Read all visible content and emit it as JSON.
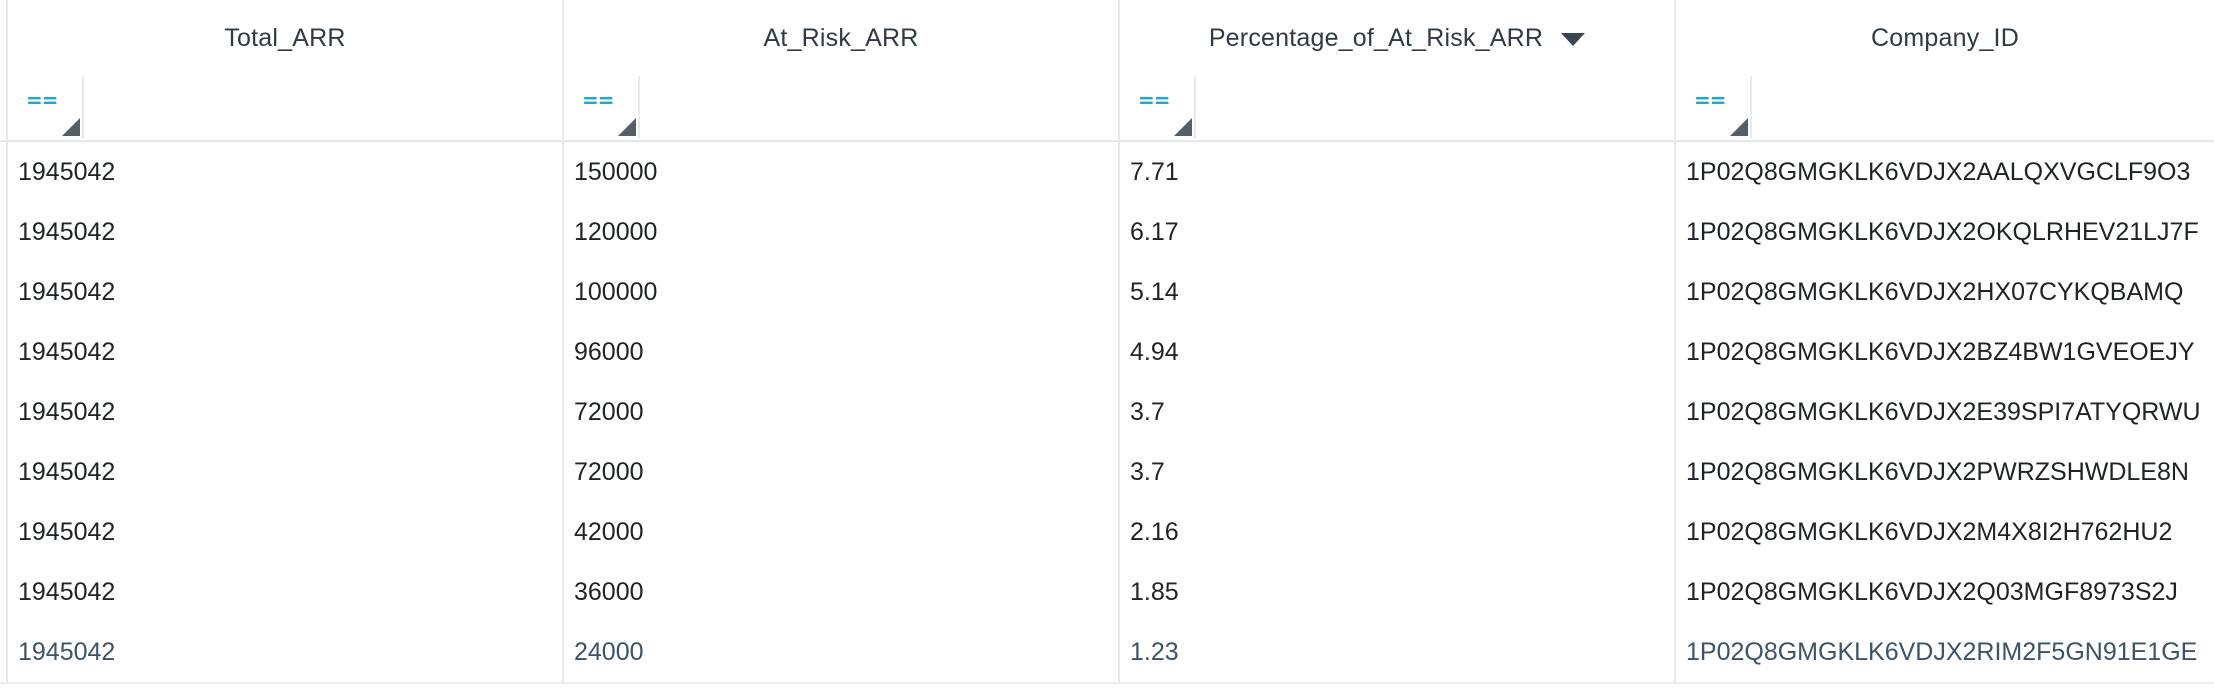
{
  "table": {
    "columns": [
      {
        "label": "Total_ARR"
      },
      {
        "label": "At_Risk_ARR"
      },
      {
        "label": "Percentage_of_At_Risk_ARR",
        "sorted": "descending"
      },
      {
        "label": "Company_ID"
      }
    ],
    "filter_label": "==",
    "rows": [
      [
        "1945042",
        "150000",
        "7.71",
        "1P02Q8GMGKLK6VDJX2AALQXVGCLF9O3"
      ],
      [
        "1945042",
        "120000",
        "6.17",
        "1P02Q8GMGKLK6VDJX2OKQLRHEV21LJ7F"
      ],
      [
        "1945042",
        "100000",
        "5.14",
        "1P02Q8GMGKLK6VDJX2HX07CYKQBAMQ"
      ],
      [
        "1945042",
        "96000",
        "4.94",
        "1P02Q8GMGKLK6VDJX2BZ4BW1GVEOEJY"
      ],
      [
        "1945042",
        "72000",
        "3.7",
        "1P02Q8GMGKLK6VDJX2E39SPI7ATYQRWU"
      ],
      [
        "1945042",
        "72000",
        "3.7",
        "1P02Q8GMGKLK6VDJX2PWRZSHWDLE8N"
      ],
      [
        "1945042",
        "42000",
        "2.16",
        "1P02Q8GMGKLK6VDJX2M4X8I2H762HU2"
      ],
      [
        "1945042",
        "36000",
        "1.85",
        "1P02Q8GMGKLK6VDJX2Q03MGF8973S2J"
      ],
      [
        "1945042",
        "24000",
        "1.23",
        "1P02Q8GMGKLK6VDJX2RIM2F5GN91E1GE"
      ]
    ]
  },
  "colors": {
    "filter_accent": "#19a7dc",
    "header_text": "#2f3a45",
    "grid_line": "#e6e9ed"
  }
}
